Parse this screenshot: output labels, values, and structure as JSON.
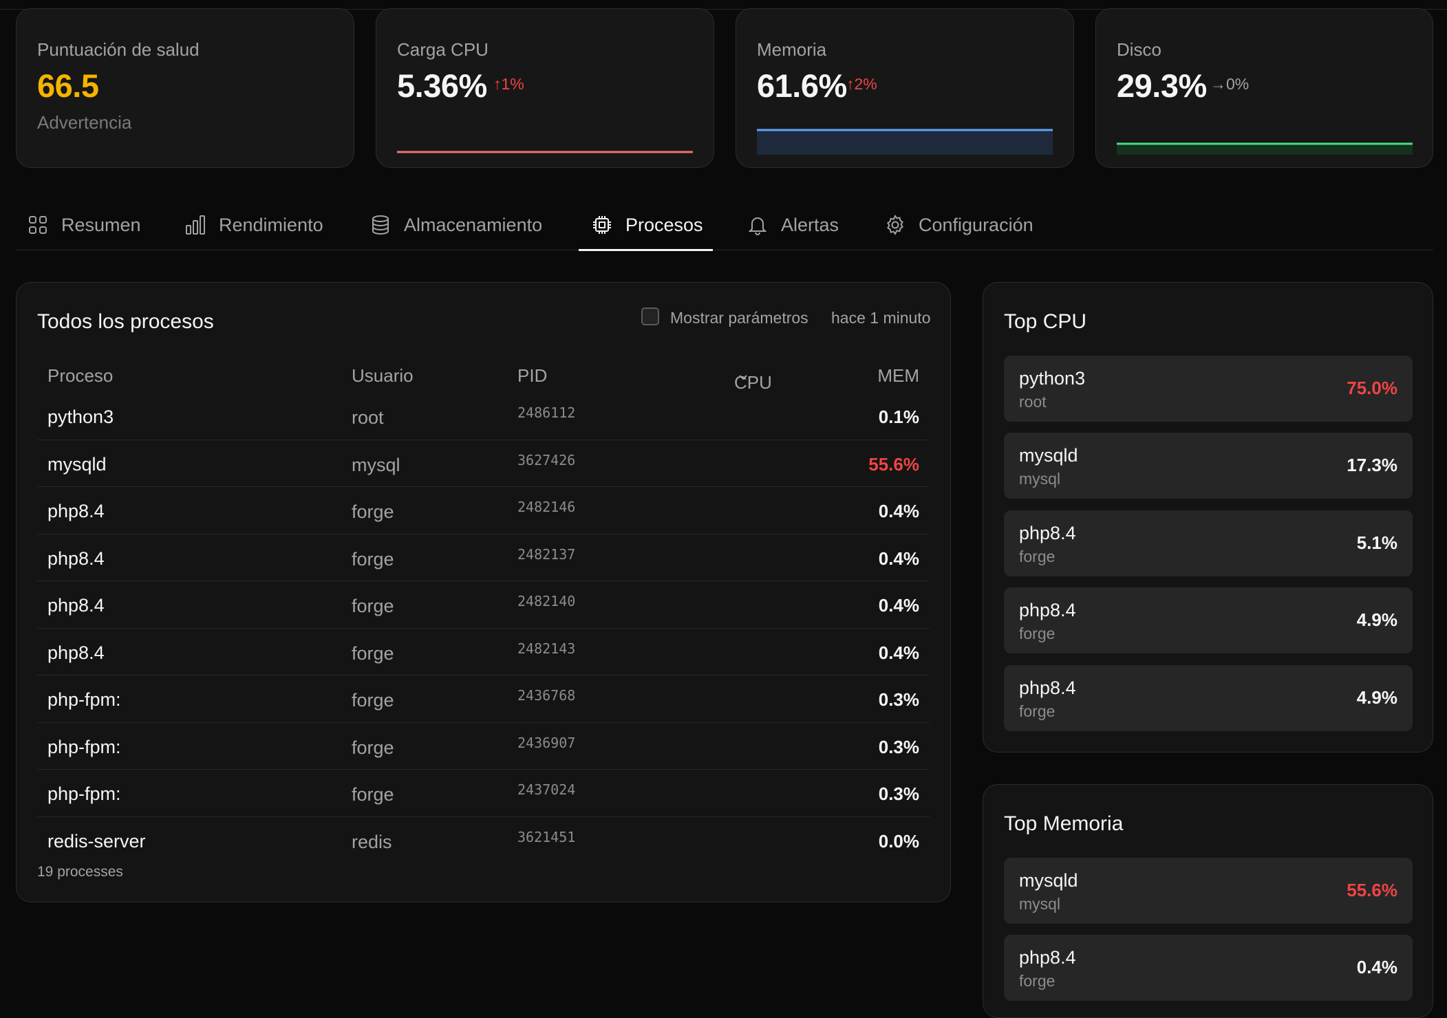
{
  "stats": {
    "health": {
      "label": "Puntuación de salud",
      "value": "66.5",
      "status": "Advertencia",
      "color": "#f5b400"
    },
    "cpu": {
      "label": "Carga CPU",
      "value": "5.36%",
      "delta": "1%",
      "trend": "up",
      "color": "#ef4444",
      "spark_color": "#f87171"
    },
    "memory": {
      "label": "Memoria",
      "value": "61.6%",
      "delta": "2%",
      "trend": "up",
      "color": "#ef4444",
      "spark_color": "#60a5fa"
    },
    "disk": {
      "label": "Disco",
      "value": "29.3%",
      "delta": "0%",
      "trend": "flat",
      "color": "#a3a3a3",
      "spark_color": "#4ade80"
    }
  },
  "tabs": [
    {
      "label": "Resumen",
      "icon": "grid-icon"
    },
    {
      "label": "Rendimiento",
      "icon": "bar-chart-icon"
    },
    {
      "label": "Almacenamiento",
      "icon": "database-icon"
    },
    {
      "label": "Procesos",
      "icon": "cpu-chip-icon",
      "active": true
    },
    {
      "label": "Alertas",
      "icon": "bell-icon"
    },
    {
      "label": "Configuración",
      "icon": "gear-icon"
    }
  ],
  "processes": {
    "title": "Todos los procesos",
    "show_params_label": "Mostrar parámetros",
    "updated": "hace 1 minuto",
    "columns": {
      "process": "Proceso",
      "user": "Usuario",
      "pid": "PID",
      "cpu": "CPU",
      "mem": "MEM"
    },
    "sort_column": "CPU",
    "rows": [
      {
        "name": "python3",
        "user": "root",
        "pid": "2486112",
        "mem": "0.1%"
      },
      {
        "name": "mysqld",
        "user": "mysql",
        "pid": "3627426",
        "mem": "55.6%",
        "hot": true
      },
      {
        "name": "php8.4",
        "user": "forge",
        "pid": "2482146",
        "mem": "0.4%"
      },
      {
        "name": "php8.4",
        "user": "forge",
        "pid": "2482137",
        "mem": "0.4%"
      },
      {
        "name": "php8.4",
        "user": "forge",
        "pid": "2482140",
        "mem": "0.4%"
      },
      {
        "name": "php8.4",
        "user": "forge",
        "pid": "2482143",
        "mem": "0.4%"
      },
      {
        "name": "php-fpm:",
        "user": "forge",
        "pid": "2436768",
        "mem": "0.3%"
      },
      {
        "name": "php-fpm:",
        "user": "forge",
        "pid": "2436907",
        "mem": "0.3%"
      },
      {
        "name": "php-fpm:",
        "user": "forge",
        "pid": "2437024",
        "mem": "0.3%"
      },
      {
        "name": "redis-server",
        "user": "redis",
        "pid": "3621451",
        "mem": "0.0%"
      }
    ],
    "count_label": "19 processes"
  },
  "top_cpu": {
    "title": "Top CPU",
    "items": [
      {
        "name": "python3",
        "user": "root",
        "value": "75.0%",
        "hot": true
      },
      {
        "name": "mysqld",
        "user": "mysql",
        "value": "17.3%"
      },
      {
        "name": "php8.4",
        "user": "forge",
        "value": "5.1%"
      },
      {
        "name": "php8.4",
        "user": "forge",
        "value": "4.9%"
      },
      {
        "name": "php8.4",
        "user": "forge",
        "value": "4.9%"
      }
    ]
  },
  "top_mem": {
    "title": "Top Memoria",
    "items": [
      {
        "name": "mysqld",
        "user": "mysql",
        "value": "55.6%",
        "hot": true
      },
      {
        "name": "php8.4",
        "user": "forge",
        "value": "0.4%"
      }
    ]
  }
}
